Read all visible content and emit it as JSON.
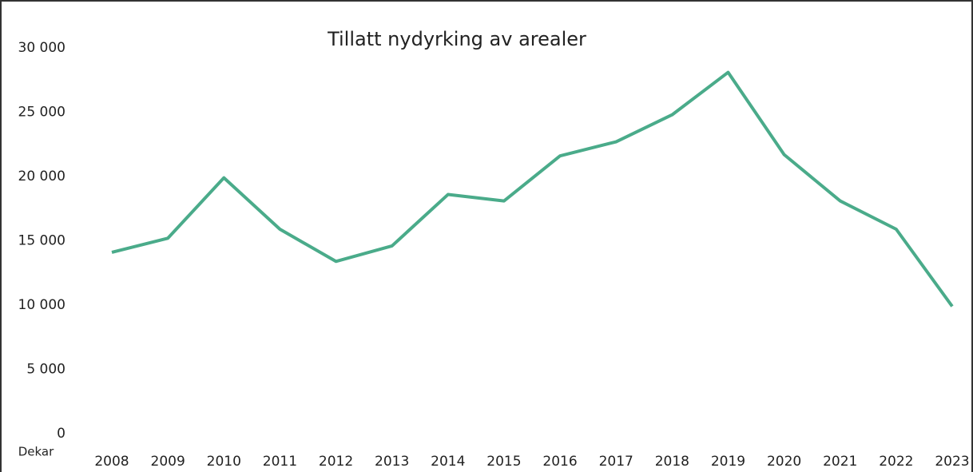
{
  "chart_data": {
    "type": "line",
    "title": "Tillatt nydyrking av arealer",
    "y_label": "Dekar",
    "categories": [
      "2008",
      "2009",
      "2010",
      "2011",
      "2012",
      "2013",
      "2014",
      "2015",
      "2016",
      "2017",
      "2018",
      "2019",
      "2020",
      "2021",
      "2022",
      "2023"
    ],
    "series": [
      {
        "name": "Tillatt nydyrking",
        "color": "#4aab8a",
        "values": [
          14100,
          15200,
          19900,
          15900,
          13400,
          14600,
          18600,
          18100,
          21600,
          22700,
          24800,
          28100,
          21700,
          18100,
          15900,
          9900
        ]
      }
    ],
    "ylim": [
      0,
      30000
    ],
    "yticks": [
      0,
      {
        "value": 5000,
        "label": "5 000"
      },
      {
        "value": 10000,
        "label": "10 000"
      },
      {
        "value": 15000,
        "label": "15 000"
      },
      {
        "value": 20000,
        "label": "20 000"
      },
      {
        "value": 25000,
        "label": "25 000"
      },
      {
        "value": 30000,
        "label": "30 000"
      }
    ],
    "grid": false
  }
}
